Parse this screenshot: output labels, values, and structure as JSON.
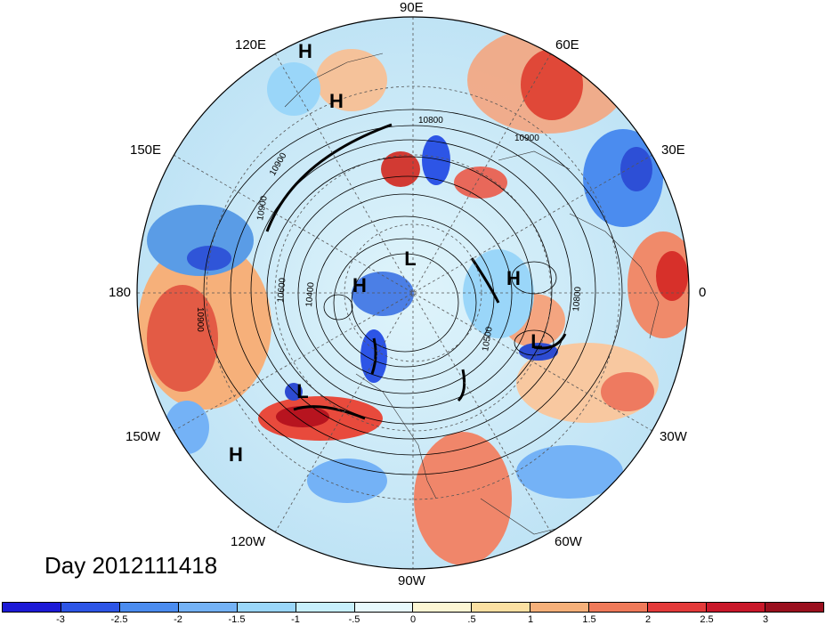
{
  "map": {
    "title": "Day 2012111418",
    "projection": "north polar stereographic",
    "longitude_labels": {
      "top": "90E",
      "bottom": "90W",
      "left": "180",
      "right": "0",
      "upper_left": "120E",
      "upper_right": "60E",
      "mid_left_upper": "150E",
      "mid_right_upper": "30E",
      "mid_left_lower": "150W",
      "mid_right_lower": "30W",
      "lower_left": "120W",
      "lower_right": "60W"
    },
    "pressure_centers": [
      {
        "label": "H"
      },
      {
        "label": "H"
      },
      {
        "label": "L"
      },
      {
        "label": "H"
      },
      {
        "label": "H"
      },
      {
        "label": "L"
      },
      {
        "label": "L"
      },
      {
        "label": "H"
      }
    ],
    "contour_labels": [
      "10800",
      "10900",
      "10900",
      "10900",
      "10600",
      "10400",
      "10900",
      "10800",
      "10500"
    ]
  },
  "colorbar": {
    "ticks": [
      "-3",
      "-2.5",
      "-2",
      "-1.5",
      "-1",
      "-.5",
      "0",
      ".5",
      "1",
      "1.5",
      "2",
      "2.5",
      "3"
    ],
    "colors": [
      "#1c1ad6",
      "#2d55e6",
      "#4b8cef",
      "#74b2f6",
      "#9ad6f9",
      "#c7effc",
      "#e8f9fd",
      "#fdf6d4",
      "#fbe0a2",
      "#f6b07a",
      "#ef7a5a",
      "#e33a3a",
      "#c9182a",
      "#9a0f1e"
    ]
  }
}
